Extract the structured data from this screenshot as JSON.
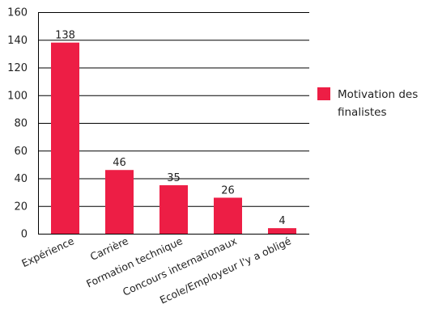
{
  "chart_data": {
    "type": "bar",
    "categories": [
      "Expérience",
      "Carrière",
      "Formation technique",
      "Concours internationaux",
      "Ecole/Employeur l'y a obligé"
    ],
    "series": [
      {
        "name": "Motivation des finalistes",
        "values": [
          138,
          46,
          35,
          26,
          4
        ]
      }
    ],
    "data_labels": [
      "138",
      "46",
      "35",
      "26",
      "4"
    ],
    "ylim": [
      0,
      160
    ],
    "yticks": [
      0,
      20,
      40,
      60,
      80,
      100,
      120,
      140,
      160
    ],
    "ytick_labels": [
      "0",
      "20",
      "40",
      "60",
      "80",
      "100",
      "120",
      "140",
      "160"
    ],
    "grid": true,
    "legend_position": "right",
    "xlabel_rotation": "angled",
    "colors": {
      "bar": "#ed1e45",
      "grid": "#000000"
    }
  },
  "legend": {
    "label": "Motivation des finalistes"
  }
}
